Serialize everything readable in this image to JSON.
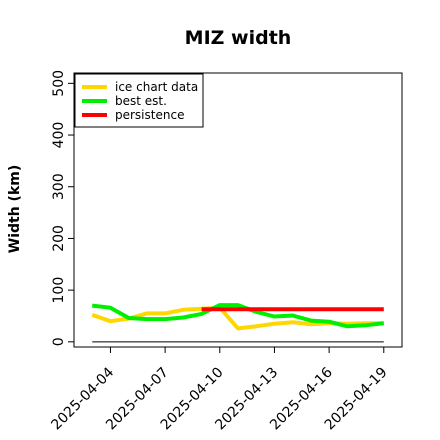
{
  "chart_data": {
    "type": "line",
    "title": "MIZ width",
    "xlabel": "",
    "ylabel": "Width (km)",
    "ylim": [
      -10,
      520
    ],
    "xlim": [
      "2025-04-02",
      "2025-04-20"
    ],
    "y_ticks": [
      "0",
      "100",
      "200",
      "300",
      "400",
      "500"
    ],
    "x_ticks": [
      "2025-04-04",
      "2025-04-07",
      "2025-04-10",
      "2025-04-13",
      "2025-04-16",
      "2025-04-19"
    ],
    "grid": false,
    "legend_position": "top-left",
    "series": [
      {
        "name": "ice chart data",
        "color": "#ffd700",
        "x": [
          "2025-04-03",
          "2025-04-04",
          "2025-04-05",
          "2025-04-06",
          "2025-04-07",
          "2025-04-08",
          "2025-04-09",
          "2025-04-10",
          "2025-04-11",
          "2025-04-12",
          "2025-04-13",
          "2025-04-14",
          "2025-04-15",
          "2025-04-16",
          "2025-04-17",
          "2025-04-18",
          "2025-04-19"
        ],
        "y": [
          52,
          40,
          45,
          55,
          55,
          62,
          64,
          66,
          26,
          30,
          35,
          38,
          34,
          36,
          35,
          36,
          36
        ]
      },
      {
        "name": "best est.",
        "color": "#00ee00",
        "x": [
          "2025-04-03",
          "2025-04-04",
          "2025-04-05",
          "2025-04-06",
          "2025-04-07",
          "2025-04-08",
          "2025-04-09",
          "2025-04-10",
          "2025-04-11",
          "2025-04-12",
          "2025-04-13",
          "2025-04-14",
          "2025-04-15",
          "2025-04-16",
          "2025-04-17",
          "2025-04-18",
          "2025-04-19"
        ],
        "y": [
          70,
          66,
          46,
          44,
          44,
          47,
          54,
          71,
          71,
          58,
          49,
          51,
          41,
          39,
          30,
          32,
          36
        ]
      },
      {
        "name": "persistence",
        "color": "#ff0000",
        "x": [
          "2025-04-09",
          "2025-04-19"
        ],
        "y": [
          63,
          63
        ]
      }
    ],
    "reference_line": {
      "y": 0,
      "color": "#000000",
      "x": [
        "2025-04-03",
        "2025-04-19"
      ]
    }
  }
}
